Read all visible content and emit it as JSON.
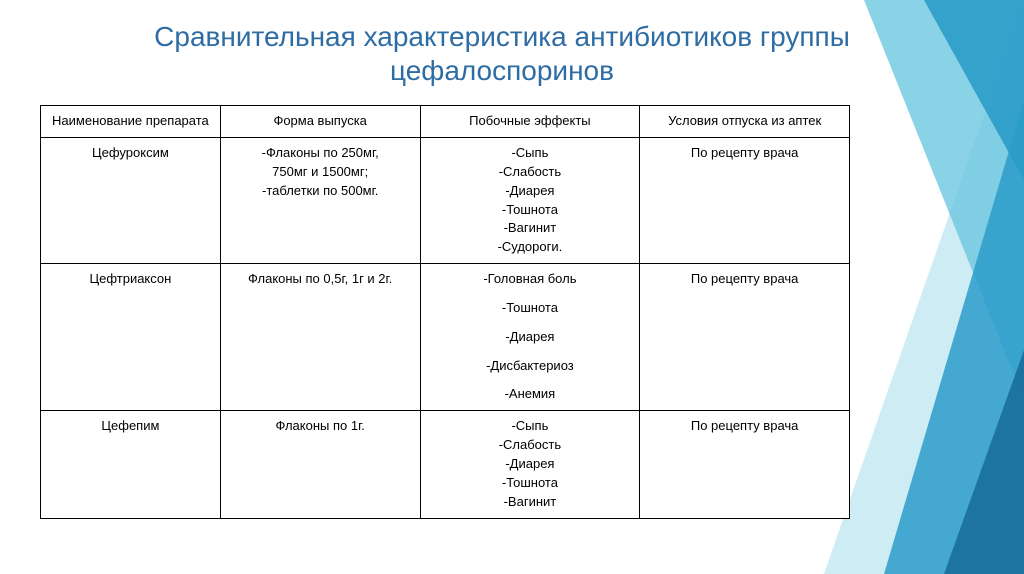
{
  "title": "Сравнительная характеристика антибиотиков группы цефалоспоринов",
  "title_color": "#2e6ca4",
  "columns": [
    "Наименование препарата",
    "Форма выпуска",
    "Побочные эффекты",
    "Условия отпуска из аптек"
  ],
  "rows": [
    {
      "name": "Цефуроксим",
      "form_lines": [
        "-Флаконы по 250мг,",
        "750мг и 1500мг;",
        "-таблетки по 500мг."
      ],
      "effects": [
        "-Сыпь",
        "-Слабость",
        "-Диарея",
        "-Тошнота",
        "-Вагинит",
        "-Судороги."
      ],
      "effects_spaced": false,
      "conditions": "По рецепту врача"
    },
    {
      "name": "Цефтриаксон",
      "form_lines": [
        "Флаконы по 0,5г, 1г и 2г."
      ],
      "effects": [
        "-Головная боль",
        "-Тошнота",
        "-Диарея",
        "-Дисбактериоз",
        "-Анемия"
      ],
      "effects_spaced": true,
      "conditions": "По рецепту врача"
    },
    {
      "name": "Цефепим",
      "form_lines": [
        "Флаконы по 1г."
      ],
      "effects": [
        "-Сыпь",
        "-Слабость",
        "-Диарея",
        "-Тошнота",
        "-Вагинит"
      ],
      "effects_spaced": false,
      "conditions": "По рецепту врача"
    }
  ],
  "decoration_colors": {
    "triangle1": "#2b9cc9",
    "triangle2": "#6dc7e0",
    "triangle3": "#b8e4ef",
    "triangle4": "#1a6f99"
  }
}
